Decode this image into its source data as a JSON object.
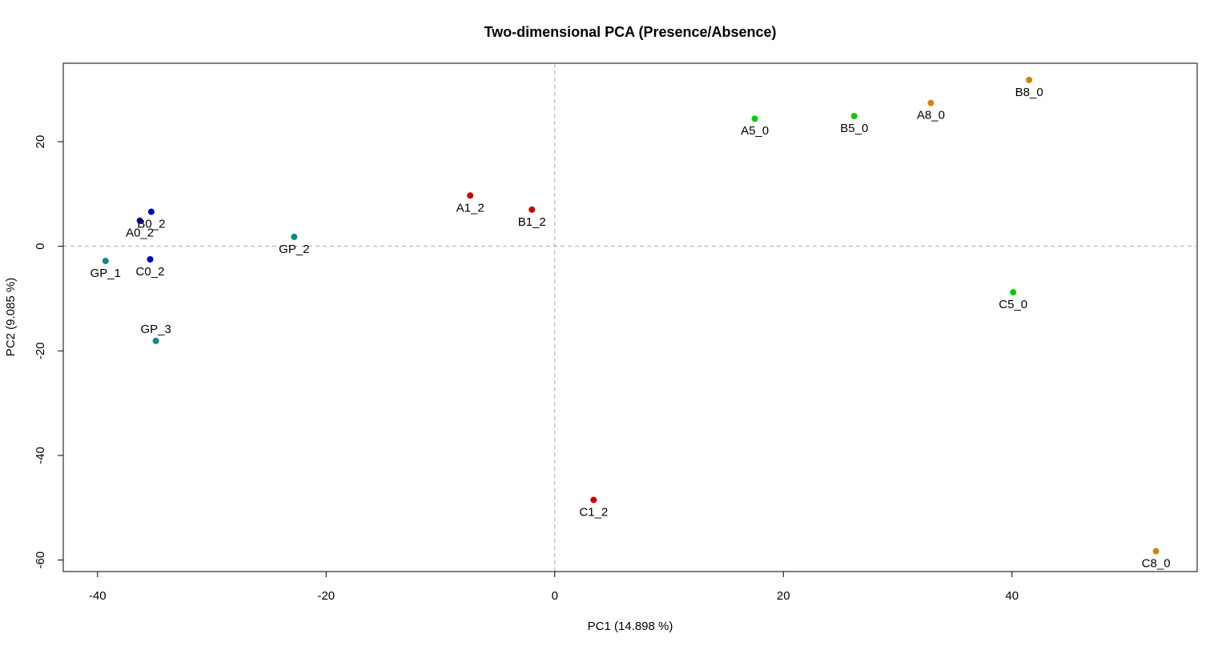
{
  "chart_data": {
    "type": "scatter",
    "title": "Two-dimensional PCA (Presence/Absence)",
    "xlabel": "PC1 (14.898 %)",
    "ylabel": "PC2 (9.085 %)",
    "xlim": [
      -43,
      56.2
    ],
    "ylim": [
      -62.2,
      35
    ],
    "xticks": [
      -40,
      -20,
      0,
      20,
      40
    ],
    "yticks": [
      -60,
      -40,
      -20,
      0,
      20
    ],
    "reference_lines": {
      "x": 0,
      "y": 0
    },
    "grid": false,
    "points": [
      {
        "label": "GP_1",
        "x": -39.3,
        "y": -2.8,
        "color": "#008B8B",
        "label_pos": "below"
      },
      {
        "label": "A0_2",
        "x": -36.3,
        "y": 4.9,
        "color": "#0000CD",
        "label_pos": "below"
      },
      {
        "label": "B0_2",
        "x": -35.3,
        "y": 6.6,
        "color": "#0000CD",
        "label_pos": "below"
      },
      {
        "label": "C0_2",
        "x": -35.4,
        "y": -2.5,
        "color": "#0000CD",
        "label_pos": "below"
      },
      {
        "label": "GP_3",
        "x": -34.9,
        "y": -18.1,
        "color": "#008B8B",
        "label_pos": "above"
      },
      {
        "label": "GP_2",
        "x": -22.8,
        "y": 1.8,
        "color": "#008B8B",
        "label_pos": "below"
      },
      {
        "label": "A1_2",
        "x": -7.4,
        "y": 9.7,
        "color": "#CD0000",
        "label_pos": "below"
      },
      {
        "label": "B1_2",
        "x": -2.0,
        "y": 7.0,
        "color": "#CD0000",
        "label_pos": "below"
      },
      {
        "label": "C1_2",
        "x": 3.4,
        "y": -48.5,
        "color": "#CD0000",
        "label_pos": "below"
      },
      {
        "label": "A5_0",
        "x": 17.5,
        "y": 24.4,
        "color": "#00CD00",
        "label_pos": "below"
      },
      {
        "label": "B5_0",
        "x": 26.2,
        "y": 24.9,
        "color": "#00CD00",
        "label_pos": "below"
      },
      {
        "label": "A8_0",
        "x": 32.9,
        "y": 27.4,
        "color": "#CD8500",
        "label_pos": "below"
      },
      {
        "label": "B8_0",
        "x": 41.5,
        "y": 31.8,
        "color": "#CD8500",
        "label_pos": "below"
      },
      {
        "label": "C5_0",
        "x": 40.1,
        "y": -8.8,
        "color": "#00CD00",
        "label_pos": "below"
      },
      {
        "label": "C8_0",
        "x": 52.6,
        "y": -58.3,
        "color": "#CD8500",
        "label_pos": "below"
      }
    ]
  }
}
